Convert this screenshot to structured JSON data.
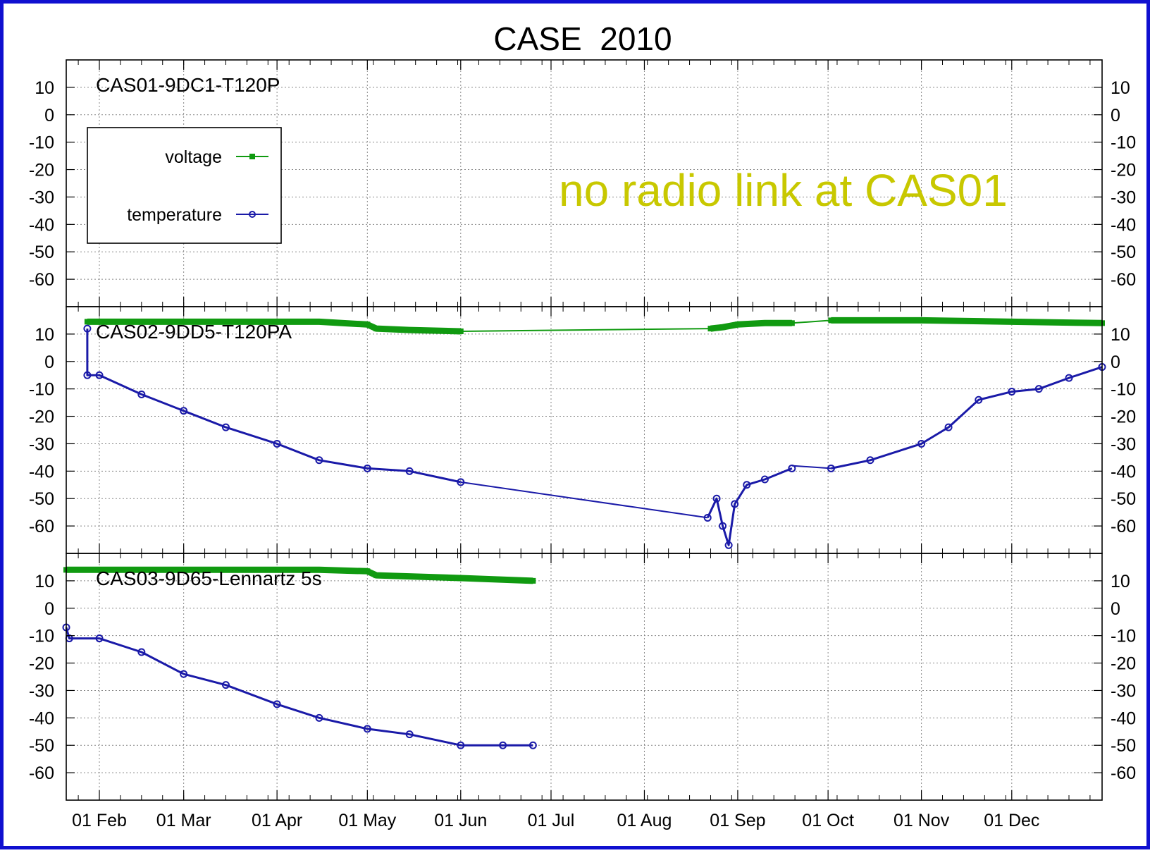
{
  "chart_data": {
    "type": "line",
    "title": "CASE  2010",
    "annotation": "no radio link at CAS01",
    "x_range": [
      "2010-01-21",
      "2010-12-31"
    ],
    "x_ticks": [
      "01 Feb",
      "01 Mar",
      "01 Apr",
      "01 May",
      "01 Jun",
      "01 Jul",
      "01 Aug",
      "01 Sep",
      "01 Oct",
      "01 Nov",
      "01 Dec"
    ],
    "x_tick_dates": [
      "2010-02-01",
      "2010-03-01",
      "2010-04-01",
      "2010-05-01",
      "2010-06-01",
      "2010-07-01",
      "2010-08-01",
      "2010-09-01",
      "2010-10-01",
      "2010-11-01",
      "2010-12-01"
    ],
    "y_range": [
      -70,
      20
    ],
    "y_ticks": [
      "10",
      "0",
      "-10",
      "-20",
      "-30",
      "-40",
      "-50",
      "-60"
    ],
    "y_tick_values": [
      10,
      0,
      -10,
      -20,
      -30,
      -40,
      -50,
      -60
    ],
    "grid": true,
    "legend": {
      "position": "top-left of first panel",
      "entries": [
        {
          "name": "voltage",
          "color": "#109a10",
          "marker": "square"
        },
        {
          "name": "temperature",
          "color": "#1a1aa8",
          "marker": "circle"
        }
      ]
    },
    "panels": [
      {
        "label": "CAS01-9DC1-T120P",
        "series": [
          {
            "name": "voltage",
            "points": []
          },
          {
            "name": "temperature",
            "points": []
          }
        ]
      },
      {
        "label": "CAS02-9DD5-T120PA",
        "series": [
          {
            "name": "voltage",
            "segments": [
              [
                [
                  "2010-01-28",
                  14.5
                ],
                [
                  "2010-02-15",
                  14.5
                ],
                [
                  "2010-03-15",
                  14.5
                ],
                [
                  "2010-04-15",
                  14.5
                ],
                [
                  "2010-05-01",
                  13.5
                ],
                [
                  "2010-05-04",
                  12
                ],
                [
                  "2010-05-15",
                  11.5
                ],
                [
                  "2010-06-01",
                  11
                ]
              ],
              [
                [
                  "2010-06-01",
                  11
                ],
                [
                  "2010-08-23",
                  12
                ]
              ],
              [
                [
                  "2010-08-23",
                  12
                ],
                [
                  "2010-08-27",
                  12.5
                ],
                [
                  "2010-09-01",
                  13.5
                ],
                [
                  "2010-09-10",
                  14
                ],
                [
                  "2010-09-19",
                  14
                ]
              ],
              [
                [
                  "2010-09-19",
                  14
                ],
                [
                  "2010-10-02",
                  15
                ]
              ],
              [
                [
                  "2010-10-02",
                  15
                ],
                [
                  "2010-11-01",
                  15
                ],
                [
                  "2010-12-01",
                  14.5
                ],
                [
                  "2010-12-31",
                  14
                ]
              ]
            ]
          },
          {
            "name": "temperature",
            "segments": [
              [
                [
                  "2010-01-28",
                  12
                ],
                [
                  "2010-01-28",
                  -5
                ],
                [
                  "2010-02-01",
                  -5
                ],
                [
                  "2010-02-15",
                  -12
                ],
                [
                  "2010-03-01",
                  -18
                ],
                [
                  "2010-03-15",
                  -24
                ],
                [
                  "2010-04-01",
                  -30
                ],
                [
                  "2010-04-15",
                  -36
                ],
                [
                  "2010-05-01",
                  -39
                ],
                [
                  "2010-05-15",
                  -40
                ],
                [
                  "2010-06-01",
                  -44
                ]
              ],
              [
                [
                  "2010-06-01",
                  -44
                ],
                [
                  "2010-08-22",
                  -57
                ]
              ],
              [
                [
                  "2010-08-22",
                  -57
                ],
                [
                  "2010-08-25",
                  -50
                ],
                [
                  "2010-08-27",
                  -60
                ],
                [
                  "2010-08-29",
                  -67
                ],
                [
                  "2010-08-31",
                  -52
                ],
                [
                  "2010-09-04",
                  -45
                ],
                [
                  "2010-09-10",
                  -43
                ],
                [
                  "2010-09-19",
                  -39
                ]
              ],
              [
                [
                  "2010-09-19",
                  -38
                ],
                [
                  "2010-10-02",
                  -39
                ]
              ],
              [
                [
                  "2010-10-02",
                  -39
                ],
                [
                  "2010-10-15",
                  -36
                ],
                [
                  "2010-11-01",
                  -30
                ],
                [
                  "2010-11-10",
                  -24
                ],
                [
                  "2010-11-20",
                  -14
                ],
                [
                  "2010-12-01",
                  -11
                ],
                [
                  "2010-12-10",
                  -10
                ],
                [
                  "2010-12-20",
                  -6
                ],
                [
                  "2010-12-31",
                  -2
                ]
              ]
            ]
          }
        ]
      },
      {
        "label": "CAS03-9D65-Lennartz 5s",
        "series": [
          {
            "name": "voltage",
            "segments": [
              [
                [
                  "2010-01-21",
                  14
                ],
                [
                  "2010-02-15",
                  14
                ],
                [
                  "2010-03-15",
                  14
                ],
                [
                  "2010-04-15",
                  14
                ],
                [
                  "2010-05-01",
                  13.5
                ],
                [
                  "2010-05-04",
                  12
                ],
                [
                  "2010-06-01",
                  11
                ],
                [
                  "2010-06-25",
                  10
                ]
              ]
            ]
          },
          {
            "name": "temperature",
            "segments": [
              [
                [
                  "2010-01-21",
                  -7
                ],
                [
                  "2010-01-22",
                  -11
                ],
                [
                  "2010-02-01",
                  -11
                ],
                [
                  "2010-02-15",
                  -16
                ],
                [
                  "2010-03-01",
                  -24
                ],
                [
                  "2010-03-15",
                  -28
                ],
                [
                  "2010-04-01",
                  -35
                ],
                [
                  "2010-04-15",
                  -40
                ],
                [
                  "2010-05-01",
                  -44
                ],
                [
                  "2010-05-15",
                  -46
                ],
                [
                  "2010-06-01",
                  -50
                ],
                [
                  "2010-06-15",
                  -50
                ],
                [
                  "2010-06-25",
                  -50
                ]
              ]
            ]
          }
        ]
      }
    ]
  }
}
